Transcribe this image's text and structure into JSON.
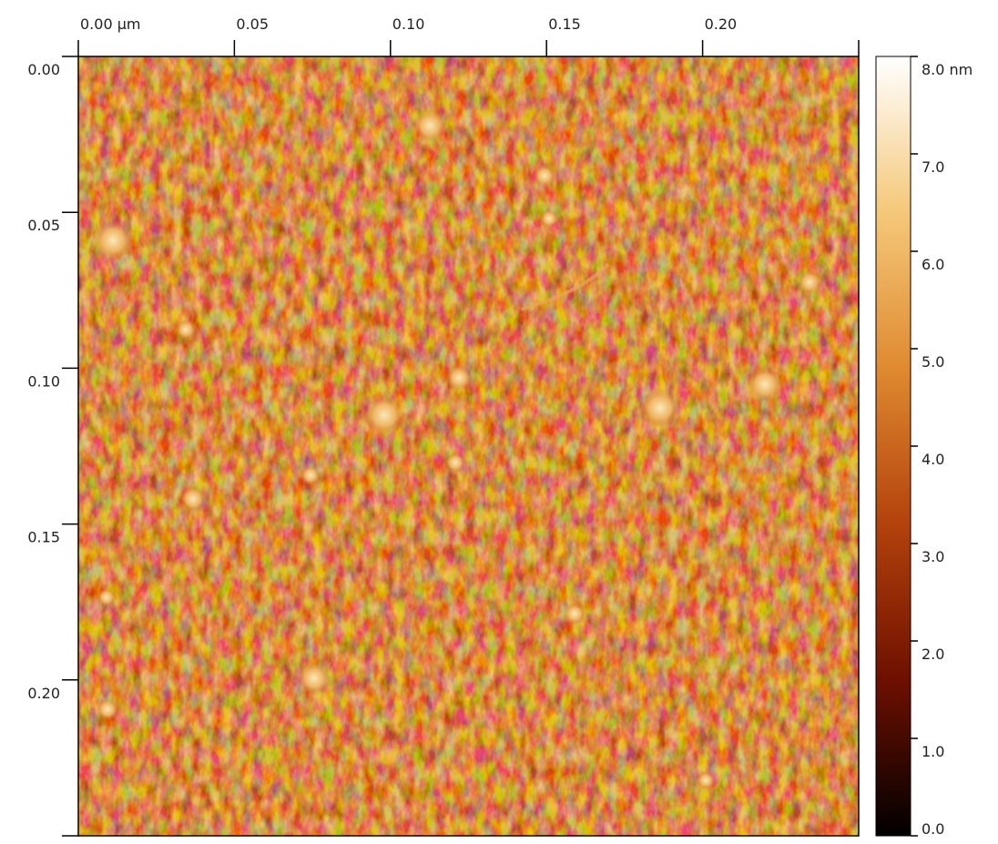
{
  "chart_data": {
    "type": "image",
    "xlim": [
      0,
      0.25
    ],
    "ylim": [
      0,
      0.25
    ],
    "xticks": [
      {
        "value": 0,
        "label": "0.00 µm"
      },
      0.05,
      {
        "value": 0.1,
        "label": "0.10"
      },
      0.15,
      {
        "value": 0.2,
        "label": "0.20"
      }
    ],
    "yticks": [
      {
        "value": 0,
        "label": "0.00"
      },
      0.05,
      {
        "value": 0.1,
        "label": "0.10"
      },
      0.15,
      {
        "value": 0.2,
        "label": "0.20"
      }
    ],
    "clim": [
      0,
      8
    ],
    "cticks": [
      {
        "value": 8,
        "label": "8.0 nm"
      },
      {
        "value": 7,
        "label": "7.0"
      },
      {
        "value": 6,
        "label": "6.0"
      },
      {
        "value": 5,
        "label": "5.0"
      },
      {
        "value": 4,
        "label": "4.0"
      },
      {
        "value": 3,
        "label": "3.0"
      },
      {
        "value": 2,
        "label": "2.0"
      },
      {
        "value": 1,
        "label": "1.0"
      },
      {
        "value": 0,
        "label": "0.0"
      }
    ],
    "colormap": [
      "#000000",
      "#6e1000",
      "#b3420c",
      "#df8a30",
      "#f5c879",
      "#ffffff"
    ]
  }
}
